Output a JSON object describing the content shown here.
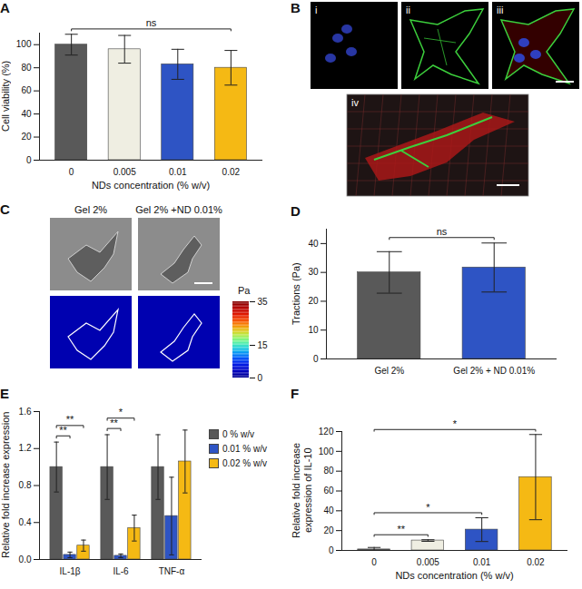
{
  "chart_data": [
    {
      "panel": "A",
      "type": "bar",
      "categories": [
        "0",
        "0.005",
        "0.01",
        "0.02"
      ],
      "values": [
        100,
        96,
        83,
        80
      ],
      "errors": [
        9,
        12,
        13,
        15
      ],
      "colors": [
        "#595959",
        "#efeee2",
        "#2e54c4",
        "#f5b914"
      ],
      "xlabel": "NDs concentration (% w/v)",
      "ylabel": "Cell viability (%)",
      "ylim": [
        0,
        110
      ],
      "yticks": [
        0,
        20,
        40,
        60,
        80,
        100
      ],
      "significance": [
        {
          "from": "0",
          "to": "0.02",
          "label": "ns"
        }
      ]
    },
    {
      "panel": "D",
      "type": "bar",
      "categories": [
        "Gel 2%",
        "Gel 2% + ND 0.01%"
      ],
      "values": [
        30,
        31.7
      ],
      "errors": [
        7.2,
        8.5
      ],
      "colors": [
        "#595959",
        "#2e54c4"
      ],
      "ylabel": "Tractions (Pa)",
      "ylim": [
        0,
        45
      ],
      "yticks": [
        0,
        10,
        20,
        30,
        40
      ],
      "significance": [
        {
          "from": "Gel 2%",
          "to": "Gel 2% + ND 0.01%",
          "label": "ns"
        }
      ]
    },
    {
      "panel": "E",
      "type": "bar",
      "categories": [
        "IL-1β",
        "IL-6",
        "TNF-α"
      ],
      "series": [
        {
          "name": "0 % w/v",
          "color": "#595959",
          "values": [
            1,
            1,
            1
          ],
          "errors": [
            0.27,
            0.35,
            0.35
          ]
        },
        {
          "name": "0.01 % w/v",
          "color": "#2e54c4",
          "values": [
            0.05,
            0.04,
            0.47
          ],
          "errors": [
            0.03,
            0.02,
            0.42
          ]
        },
        {
          "name": "0.02 % w/v",
          "color": "#f5b914",
          "values": [
            0.15,
            0.34,
            1.06
          ],
          "errors": [
            0.06,
            0.14,
            0.34
          ]
        }
      ],
      "legend": "right",
      "ylabel": "Relative fold increase expression",
      "ylim": [
        0,
        1.6
      ],
      "yticks": [
        {
          "value": 0,
          "label": "0.0"
        },
        {
          "value": 0.4,
          "label": "0.4"
        },
        {
          "value": 0.8,
          "label": "0.8"
        },
        {
          "value": 1.2,
          "label": "1.2"
        },
        {
          "value": 1.6,
          "label": "1.6"
        }
      ],
      "significance": [
        {
          "category": "IL-1β",
          "from": "0 % w/v",
          "to": "0.01 % w/v",
          "label": "**"
        },
        {
          "category": "IL-1β",
          "from": "0 % w/v",
          "to": "0.02 % w/v",
          "label": "**"
        },
        {
          "category": "IL-6",
          "from": "0 % w/v",
          "to": "0.01 % w/v",
          "label": "**"
        },
        {
          "category": "IL-6",
          "from": "0 % w/v",
          "to": "0.02 % w/v",
          "label": "*"
        }
      ]
    },
    {
      "panel": "F",
      "type": "bar",
      "categories": [
        "0",
        "0.005",
        "0.01",
        "0.02"
      ],
      "values": [
        1,
        10,
        21,
        74
      ],
      "errors": [
        2,
        0.8,
        12,
        43
      ],
      "colors": [
        "#595959",
        "#efeee2",
        "#2e54c4",
        "#f5b914"
      ],
      "xlabel": "NDs concentration (% w/v)",
      "ylabel": "Relative fold increase expression of IL-10",
      "ylim": [
        0,
        120
      ],
      "yticks": [
        0,
        20,
        40,
        60,
        80,
        100,
        120
      ],
      "significance": [
        {
          "from": "0",
          "to": "0.005",
          "label": "**"
        },
        {
          "from": "0",
          "to": "0.01",
          "label": "*"
        },
        {
          "from": "0",
          "to": "0.02",
          "label": "*"
        }
      ]
    }
  ],
  "image_panels": [
    {
      "panel": "B",
      "labels": [
        "i",
        "ii",
        "iii",
        "iv"
      ]
    },
    {
      "panel": "C",
      "labels": [
        "Gel 2%",
        "Gel 2% +ND 0.01%"
      ],
      "colorbar": {
        "label": "Pa",
        "range": [
          0,
          35
        ],
        "ticks": [
          0,
          15,
          35
        ]
      }
    }
  ]
}
